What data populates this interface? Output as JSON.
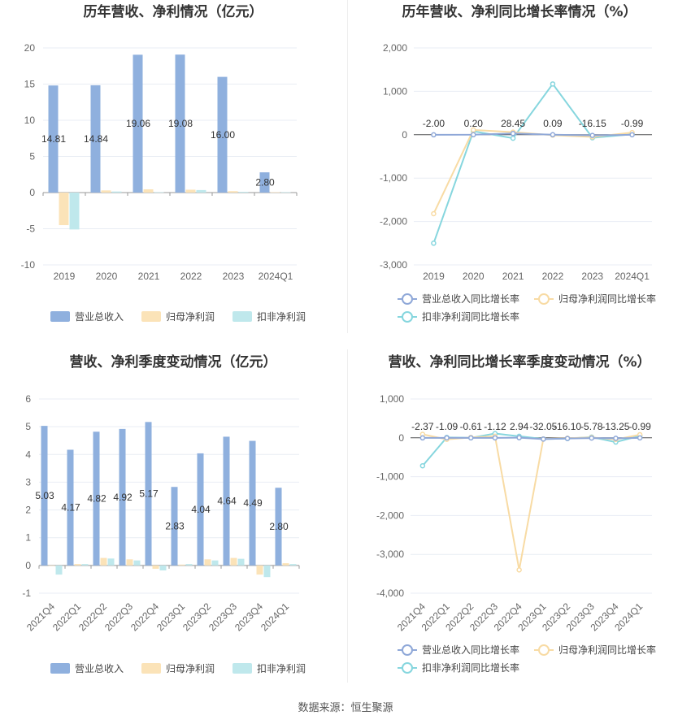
{
  "source": "数据来源：恒生聚源",
  "colors": {
    "revenue": "#8fb0de",
    "net_profit": "#fbe3b8",
    "deducted_profit": "#bfe8ec",
    "rev_growth_line": "#8fa8d8",
    "np_growth_line": "#f8dba4",
    "dp_growth_line": "#86d6de",
    "axis": "#999999",
    "grid": "#e9edf4"
  },
  "chart_data": [
    {
      "id": "annual_values",
      "type": "bar",
      "title": "历年营收、净利情况（亿元）",
      "categories": [
        "2019",
        "2020",
        "2021",
        "2022",
        "2023",
        "2024Q1"
      ],
      "series": [
        {
          "name": "营业总收入",
          "values": [
            14.81,
            14.84,
            19.06,
            19.08,
            16.0,
            2.8
          ],
          "labels": [
            "14.81",
            "14.84",
            "19.06",
            "19.08",
            "16.00",
            "2.80"
          ]
        },
        {
          "name": "归母净利润",
          "values": [
            -4.5,
            0.3,
            0.45,
            0.4,
            0.2,
            0.05
          ]
        },
        {
          "name": "扣非净利润",
          "values": [
            -5.1,
            0.15,
            0.05,
            0.35,
            0.1,
            0.05
          ]
        }
      ],
      "yticks": [
        20,
        15,
        10,
        5,
        0,
        -5,
        -10
      ],
      "ylim": [
        -10,
        20
      ],
      "legend": [
        "营业总收入",
        "归母净利润",
        "扣非净利润"
      ]
    },
    {
      "id": "annual_growth",
      "type": "line",
      "title": "历年营收、净利同比增长率情况（%）",
      "categories": [
        "2019",
        "2020",
        "2021",
        "2022",
        "2023",
        "2024Q1"
      ],
      "series": [
        {
          "name": "营业总收入同比增长率",
          "values": [
            -2.0,
            0.2,
            28.45,
            0.09,
            -16.15,
            -0.99
          ],
          "labels": [
            "-2.00",
            "0.20",
            "28.45",
            "0.09",
            "-16.15",
            "-0.99"
          ]
        },
        {
          "name": "归母净利润同比增长率",
          "values": [
            -1820,
            110,
            60,
            -10,
            -50,
            50
          ]
        },
        {
          "name": "扣非净利润同比增长率",
          "values": [
            -2500,
            80,
            -80,
            1170,
            -70,
            10
          ]
        }
      ],
      "yticks": [
        "2,000",
        "1,000",
        "0",
        "-1,000",
        "-2,000",
        "-3,000"
      ],
      "ytick_values": [
        2000,
        1000,
        0,
        -1000,
        -2000,
        -3000
      ],
      "ylim": [
        -3000,
        2000
      ],
      "legend": [
        "营业总收入同比增长率",
        "归母净利润同比增长率",
        "扣非净利润同比增长率"
      ]
    },
    {
      "id": "quarterly_values",
      "type": "bar",
      "title": "营收、净利季度变动情况（亿元）",
      "categories": [
        "2021Q4",
        "2022Q1",
        "2022Q2",
        "2022Q3",
        "2022Q4",
        "2023Q1",
        "2023Q2",
        "2023Q3",
        "2023Q4",
        "2024Q1"
      ],
      "series": [
        {
          "name": "营业总收入",
          "values": [
            5.03,
            4.17,
            4.82,
            4.92,
            5.17,
            2.83,
            4.04,
            4.64,
            4.49,
            2.8
          ],
          "labels": [
            "5.03",
            "4.17",
            "4.82",
            "4.92",
            "5.17",
            "2.83",
            "4.04",
            "4.64",
            "4.49",
            "2.80"
          ]
        },
        {
          "name": "归母净利润",
          "values": [
            0,
            0.05,
            0.27,
            0.22,
            -0.12,
            0.03,
            0.22,
            0.27,
            -0.33,
            0.08
          ]
        },
        {
          "name": "扣非净利润",
          "values": [
            -0.33,
            0.05,
            0.25,
            0.18,
            -0.18,
            0.05,
            0.18,
            0.24,
            -0.42,
            0.05
          ]
        }
      ],
      "yticks": [
        6,
        5,
        4,
        3,
        2,
        1,
        0,
        -1
      ],
      "ylim": [
        -1,
        6
      ],
      "legend": [
        "营业总收入",
        "归母净利润",
        "扣非净利润"
      ]
    },
    {
      "id": "quarterly_growth",
      "type": "line",
      "title": "营收、净利同比增长率季度变动情况（%）",
      "categories": [
        "2021Q4",
        "2022Q1",
        "2022Q2",
        "2022Q3",
        "2022Q4",
        "2023Q1",
        "2023Q2",
        "2023Q3",
        "2023Q4",
        "2024Q1"
      ],
      "series": [
        {
          "name": "营业总收入同比增长率",
          "values": [
            -2.37,
            -1.09,
            -0.61,
            -1.12,
            2.94,
            -32.05,
            -16.1,
            -5.78,
            -13.25,
            -0.99
          ],
          "labels": [
            "-2.37",
            "-1.09",
            "-0.61",
            "-1.12",
            "2.94",
            "-32.05",
            "-16.10",
            "-5.78",
            "-13.25",
            "-0.99"
          ]
        },
        {
          "name": "归母净利润同比增长率",
          "values": [
            90,
            -40,
            10,
            40,
            -3400,
            -30,
            -10,
            10,
            -40,
            80
          ]
        },
        {
          "name": "扣非净利润同比增长率",
          "values": [
            -720,
            10,
            0,
            110,
            40,
            -30,
            -20,
            20,
            -110,
            50
          ]
        }
      ],
      "yticks": [
        "1,000",
        "0",
        "-1,000",
        "-2,000",
        "-3,000",
        "-4,000"
      ],
      "ytick_values": [
        1000,
        0,
        -1000,
        -2000,
        -3000,
        -4000
      ],
      "ylim": [
        -4000,
        1000
      ],
      "legend": [
        "营业总收入同比增长率",
        "归母净利润同比增长率",
        "扣非净利润同比增长率"
      ]
    }
  ]
}
